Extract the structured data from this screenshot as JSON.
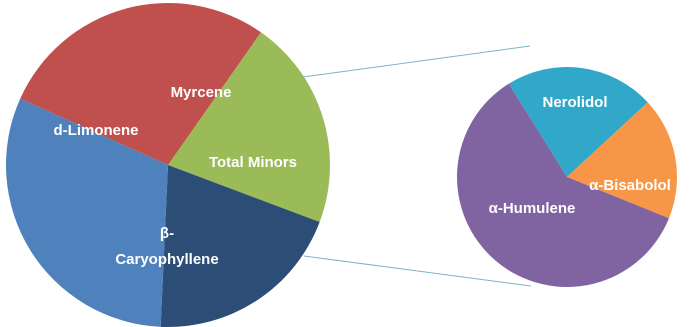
{
  "chart_data": [
    {
      "type": "pie",
      "categories": [
        "Myrcene",
        "Total Minors",
        "β-\nCaryophyllene",
        "d-Limonene"
      ],
      "values": [
        21,
        20,
        31,
        28
      ],
      "colors": [
        "#9bbb59",
        "#2c4d75",
        "#4f81bd",
        "#c0504d"
      ],
      "label_colors": [
        "#ffffff",
        "#ffffff",
        "#ffffff",
        "#ffffff"
      ]
    },
    {
      "type": "pie",
      "categories": [
        "Nerolidol",
        "α-Bisabolol",
        "α-Humulene"
      ],
      "values": [
        22,
        18,
        60
      ],
      "colors": [
        "#31a8c9",
        "#f79646",
        "#8064a2"
      ],
      "label_colors": [
        "#ffffff",
        "#ffffff",
        "#ffffff"
      ]
    }
  ]
}
